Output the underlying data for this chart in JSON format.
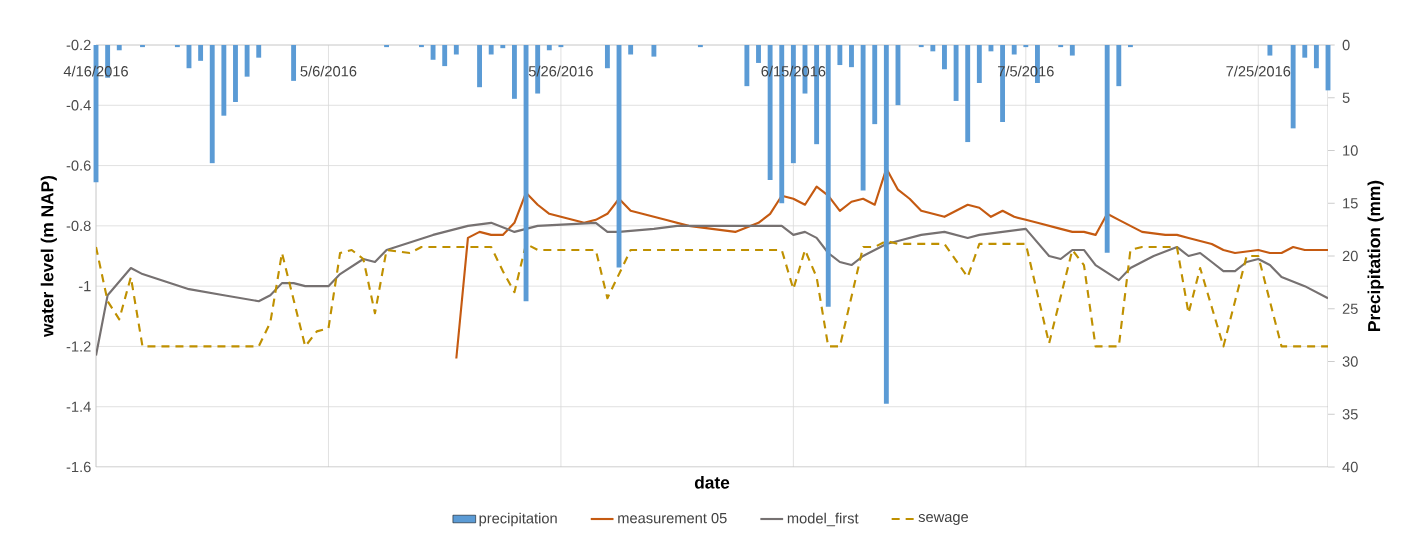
{
  "chart_data": {
    "type": "line",
    "xlabel": "date",
    "ylabel": "water level (m NAP)",
    "y2label": "Precipitation (mm)",
    "xlim": [
      "2016-04-16",
      "2016-07-31"
    ],
    "xticks": [
      {
        "value": "2016-04-16",
        "label": "4/16/2016"
      },
      {
        "value": "2016-05-06",
        "label": "5/6/2016"
      },
      {
        "value": "2016-05-26",
        "label": "5/26/2016"
      },
      {
        "value": "2016-06-15",
        "label": "6/15/2016"
      },
      {
        "value": "2016-07-05",
        "label": "7/5/2016"
      },
      {
        "value": "2016-07-25",
        "label": "7/25/2016"
      }
    ],
    "ylim": [
      -1.6,
      -0.2
    ],
    "yticks": [
      -1.6,
      -1.4,
      -1.2,
      -1,
      -0.8,
      -0.6,
      -0.4,
      -0.2
    ],
    "y2lim": [
      40,
      0
    ],
    "y2ticks": [
      0,
      5,
      10,
      15,
      20,
      25,
      30,
      35,
      40
    ],
    "grid": true,
    "legend": "bottom",
    "series": [
      {
        "name": "precipitation",
        "type": "bar",
        "axis": "y2",
        "color": "#5b9bd5",
        "x": [
          "2016-04-16",
          "2016-04-17",
          "2016-04-18",
          "2016-04-20",
          "2016-04-23",
          "2016-04-24",
          "2016-04-25",
          "2016-04-26",
          "2016-04-27",
          "2016-04-28",
          "2016-04-29",
          "2016-04-30",
          "2016-05-03",
          "2016-05-11",
          "2016-05-14",
          "2016-05-15",
          "2016-05-16",
          "2016-05-17",
          "2016-05-19",
          "2016-05-20",
          "2016-05-21",
          "2016-05-22",
          "2016-05-23",
          "2016-05-24",
          "2016-05-25",
          "2016-05-26",
          "2016-05-30",
          "2016-05-31",
          "2016-06-01",
          "2016-06-03",
          "2016-06-07",
          "2016-06-11",
          "2016-06-12",
          "2016-06-13",
          "2016-06-14",
          "2016-06-15",
          "2016-06-16",
          "2016-06-17",
          "2016-06-18",
          "2016-06-19",
          "2016-06-20",
          "2016-06-21",
          "2016-06-22",
          "2016-06-23",
          "2016-06-24",
          "2016-06-26",
          "2016-06-27",
          "2016-06-28",
          "2016-06-29",
          "2016-06-30",
          "2016-07-01",
          "2016-07-02",
          "2016-07-03",
          "2016-07-04",
          "2016-07-05",
          "2016-07-06",
          "2016-07-08",
          "2016-07-09",
          "2016-07-12",
          "2016-07-13",
          "2016-07-14",
          "2016-07-26",
          "2016-07-28",
          "2016-07-29",
          "2016-07-30",
          "2016-07-31"
        ],
        "values": [
          13.0,
          3.1,
          0.5,
          0.2,
          0.2,
          2.2,
          1.5,
          11.2,
          6.7,
          5.4,
          3.0,
          1.2,
          3.4,
          0.2,
          0.2,
          1.4,
          2.0,
          0.9,
          4.0,
          0.9,
          0.3,
          5.1,
          24.3,
          4.6,
          0.5,
          0.2,
          2.2,
          21.1,
          0.9,
          1.1,
          0.2,
          3.9,
          1.7,
          12.8,
          15.0,
          11.2,
          4.6,
          9.4,
          24.8,
          1.9,
          2.1,
          13.8,
          7.5,
          34.0,
          5.7,
          0.2,
          0.6,
          2.3,
          5.3,
          9.2,
          3.6,
          0.6,
          7.3,
          0.9,
          0.2,
          3.6,
          0.2,
          1.0,
          19.7,
          3.9,
          0.2,
          1.0,
          7.9,
          1.2,
          2.2,
          4.3
        ]
      },
      {
        "name": "measurement 05",
        "color": "#c55a11",
        "line_style": "solid",
        "x": [
          "2016-05-17",
          "2016-05-18",
          "2016-05-19",
          "2016-05-20",
          "2016-05-21",
          "2016-05-22",
          "2016-05-23",
          "2016-05-24",
          "2016-05-25",
          "2016-05-26",
          "2016-05-28",
          "2016-05-29",
          "2016-05-30",
          "2016-05-31",
          "2016-06-01",
          "2016-06-03",
          "2016-06-04",
          "2016-06-06",
          "2016-06-08",
          "2016-06-10",
          "2016-06-12",
          "2016-06-13",
          "2016-06-14",
          "2016-06-15",
          "2016-06-16",
          "2016-06-17",
          "2016-06-18",
          "2016-06-19",
          "2016-06-20",
          "2016-06-21",
          "2016-06-22",
          "2016-06-23",
          "2016-06-24",
          "2016-06-25",
          "2016-06-26",
          "2016-06-27",
          "2016-06-28",
          "2016-06-29",
          "2016-06-30",
          "2016-07-01",
          "2016-07-02",
          "2016-07-03",
          "2016-07-04",
          "2016-07-05",
          "2016-07-06",
          "2016-07-07",
          "2016-07-08",
          "2016-07-09",
          "2016-07-10",
          "2016-07-11",
          "2016-07-12",
          "2016-07-13",
          "2016-07-14",
          "2016-07-15",
          "2016-07-17",
          "2016-07-18",
          "2016-07-19",
          "2016-07-20",
          "2016-07-21",
          "2016-07-22",
          "2016-07-23",
          "2016-07-25",
          "2016-07-26",
          "2016-07-27",
          "2016-07-28",
          "2016-07-29",
          "2016-07-30",
          "2016-07-31"
        ],
        "values": [
          -1.24,
          -0.84,
          -0.82,
          -0.83,
          -0.83,
          -0.79,
          -0.69,
          -0.73,
          -0.76,
          -0.77,
          -0.79,
          -0.78,
          -0.76,
          -0.71,
          -0.75,
          -0.77,
          -0.78,
          -0.8,
          -0.81,
          -0.82,
          -0.79,
          -0.76,
          -0.7,
          -0.71,
          -0.73,
          -0.67,
          -0.7,
          -0.75,
          -0.72,
          -0.71,
          -0.73,
          -0.61,
          -0.68,
          -0.71,
          -0.75,
          -0.76,
          -0.77,
          -0.75,
          -0.73,
          -0.74,
          -0.77,
          -0.75,
          -0.77,
          -0.78,
          -0.79,
          -0.8,
          -0.81,
          -0.82,
          -0.82,
          -0.83,
          -0.76,
          -0.78,
          -0.8,
          -0.82,
          -0.83,
          -0.83,
          -0.84,
          -0.85,
          -0.86,
          -0.88,
          -0.89,
          -0.88,
          -0.89,
          -0.89,
          -0.87,
          -0.88,
          -0.88,
          -0.88
        ]
      },
      {
        "name": "model_first",
        "color": "#767171",
        "line_style": "solid",
        "x": [
          "2016-04-16",
          "2016-04-17",
          "2016-04-19",
          "2016-04-20",
          "2016-04-24",
          "2016-04-27",
          "2016-04-30",
          "2016-05-01",
          "2016-05-02",
          "2016-05-03",
          "2016-05-04",
          "2016-05-06",
          "2016-05-07",
          "2016-05-09",
          "2016-05-10",
          "2016-05-11",
          "2016-05-15",
          "2016-05-18",
          "2016-05-20",
          "2016-05-22",
          "2016-05-23",
          "2016-05-24",
          "2016-05-29",
          "2016-05-30",
          "2016-05-31",
          "2016-06-03",
          "2016-06-05",
          "2016-06-13",
          "2016-06-14",
          "2016-06-15",
          "2016-06-16",
          "2016-06-17",
          "2016-06-18",
          "2016-06-19",
          "2016-06-20",
          "2016-06-21",
          "2016-06-22",
          "2016-06-23",
          "2016-06-24",
          "2016-06-26",
          "2016-06-28",
          "2016-06-30",
          "2016-07-01",
          "2016-07-03",
          "2016-07-05",
          "2016-07-07",
          "2016-07-08",
          "2016-07-09",
          "2016-07-10",
          "2016-07-11",
          "2016-07-13",
          "2016-07-14",
          "2016-07-15",
          "2016-07-16",
          "2016-07-18",
          "2016-07-19",
          "2016-07-20",
          "2016-07-21",
          "2016-07-22",
          "2016-07-23",
          "2016-07-24",
          "2016-07-25",
          "2016-07-26",
          "2016-07-27",
          "2016-07-29",
          "2016-07-31"
        ],
        "values": [
          -1.23,
          -1.03,
          -0.94,
          -0.96,
          -1.01,
          -1.03,
          -1.05,
          -1.03,
          -0.99,
          -0.99,
          -1.0,
          -1.0,
          -0.96,
          -0.91,
          -0.92,
          -0.88,
          -0.83,
          -0.8,
          -0.79,
          -0.82,
          -0.81,
          -0.8,
          -0.79,
          -0.82,
          -0.82,
          -0.81,
          -0.8,
          -0.8,
          -0.8,
          -0.83,
          -0.82,
          -0.84,
          -0.89,
          -0.92,
          -0.93,
          -0.9,
          -0.88,
          -0.86,
          -0.85,
          -0.83,
          -0.82,
          -0.84,
          -0.83,
          -0.82,
          -0.81,
          -0.9,
          -0.91,
          -0.88,
          -0.88,
          -0.93,
          -0.98,
          -0.94,
          -0.92,
          -0.9,
          -0.87,
          -0.9,
          -0.89,
          -0.92,
          -0.95,
          -0.95,
          -0.92,
          -0.91,
          -0.93,
          -0.97,
          -1.0,
          -1.04
        ]
      },
      {
        "name": "sewage",
        "color": "#bf9000",
        "line_style": "dashed",
        "x": [
          "2016-04-16",
          "2016-04-17",
          "2016-04-18",
          "2016-04-19",
          "2016-04-20",
          "2016-04-30",
          "2016-05-01",
          "2016-05-02",
          "2016-05-04",
          "2016-05-05",
          "2016-05-06",
          "2016-05-07",
          "2016-05-08",
          "2016-05-09",
          "2016-05-10",
          "2016-05-11",
          "2016-05-13",
          "2016-05-14",
          "2016-05-20",
          "2016-05-21",
          "2016-05-22",
          "2016-05-23",
          "2016-05-24",
          "2016-05-29",
          "2016-05-30",
          "2016-06-01",
          "2016-06-14",
          "2016-06-15",
          "2016-06-16",
          "2016-06-17",
          "2016-06-18",
          "2016-06-19",
          "2016-06-21",
          "2016-06-22",
          "2016-06-23",
          "2016-06-24",
          "2016-06-28",
          "2016-06-30",
          "2016-07-01",
          "2016-07-05",
          "2016-07-07",
          "2016-07-09",
          "2016-07-10",
          "2016-07-11",
          "2016-07-13",
          "2016-07-14",
          "2016-07-15",
          "2016-07-18",
          "2016-07-19",
          "2016-07-20",
          "2016-07-22",
          "2016-07-24",
          "2016-07-25",
          "2016-07-27",
          "2016-07-31"
        ],
        "values": [
          -0.87,
          -1.05,
          -1.11,
          -0.97,
          -1.2,
          -1.2,
          -1.12,
          -0.89,
          -1.2,
          -1.15,
          -1.14,
          -0.89,
          -0.88,
          -0.91,
          -1.09,
          -0.88,
          -0.89,
          -0.87,
          -0.87,
          -0.95,
          -1.02,
          -0.86,
          -0.88,
          -0.88,
          -1.04,
          -0.88,
          -0.88,
          -1.01,
          -0.88,
          -0.97,
          -1.2,
          -1.2,
          -0.87,
          -0.87,
          -0.85,
          -0.86,
          -0.86,
          -0.97,
          -0.86,
          -0.86,
          -1.19,
          -0.88,
          -0.93,
          -1.2,
          -1.2,
          -0.88,
          -0.87,
          -0.87,
          -1.09,
          -0.94,
          -1.2,
          -0.9,
          -0.9,
          -1.2,
          -1.2
        ]
      }
    ]
  }
}
